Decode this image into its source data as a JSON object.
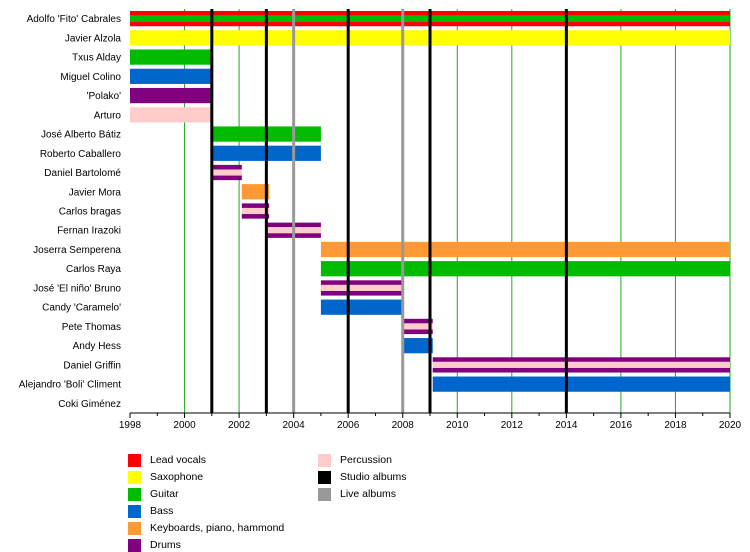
{
  "chart_data": {
    "type": "timeline",
    "x_start": 1998,
    "x_end": 2020,
    "x_ticks": [
      "1998",
      "2000",
      "2002",
      "2004",
      "2006",
      "2008",
      "2010",
      "2012",
      "2014",
      "2016",
      "2018",
      "2020"
    ],
    "members": [
      {
        "name": "Adolfo 'Fito' Cabrales",
        "periods": [
          {
            "from": 1998,
            "to": 2020,
            "roles": [
              "Lead vocals",
              "Guitar"
            ]
          }
        ]
      },
      {
        "name": "Javier Alzola",
        "periods": [
          {
            "from": 1998,
            "to": 2020,
            "roles": [
              "Saxophone"
            ]
          }
        ]
      },
      {
        "name": "Txus Alday",
        "periods": [
          {
            "from": 1998,
            "to": 2001,
            "roles": [
              "Guitar"
            ]
          }
        ]
      },
      {
        "name": "Miguel Colino",
        "periods": [
          {
            "from": 1998,
            "to": 2001,
            "roles": [
              "Bass"
            ]
          }
        ]
      },
      {
        "name": "'Polako'",
        "periods": [
          {
            "from": 1998,
            "to": 2001,
            "roles": [
              "Drums"
            ]
          }
        ]
      },
      {
        "name": "Arturo",
        "periods": [
          {
            "from": 1998,
            "to": 2001,
            "roles": [
              "Percussion"
            ]
          }
        ]
      },
      {
        "name": "José Alberto Bátiz",
        "periods": [
          {
            "from": 2001,
            "to": 2005,
            "roles": [
              "Guitar"
            ]
          }
        ]
      },
      {
        "name": "Roberto Caballero",
        "periods": [
          {
            "from": 2001,
            "to": 2005,
            "roles": [
              "Bass"
            ]
          }
        ]
      },
      {
        "name": "Daniel Bartolomé",
        "periods": [
          {
            "from": 2001,
            "to": 2002.1,
            "roles": [
              "Drums",
              "Percussion"
            ]
          }
        ]
      },
      {
        "name": "Javier Mora",
        "periods": [
          {
            "from": 2002.1,
            "to": 2003.1,
            "roles": [
              "Keyboards, piano, hammond"
            ]
          }
        ]
      },
      {
        "name": "Carlos bragas",
        "periods": [
          {
            "from": 2002.1,
            "to": 2003.1,
            "roles": [
              "Drums",
              "Percussion"
            ]
          }
        ]
      },
      {
        "name": "Fernan Irazoki",
        "periods": [
          {
            "from": 2003,
            "to": 2005,
            "roles": [
              "Drums",
              "Percussion"
            ]
          }
        ]
      },
      {
        "name": "Joserra Semperena",
        "periods": [
          {
            "from": 2005,
            "to": 2020,
            "roles": [
              "Keyboards, piano, hammond"
            ]
          }
        ]
      },
      {
        "name": "Carlos Raya",
        "periods": [
          {
            "from": 2005,
            "to": 2020,
            "roles": [
              "Guitar"
            ]
          }
        ]
      },
      {
        "name": "José 'El niño' Bruno",
        "periods": [
          {
            "from": 2005,
            "to": 2008,
            "roles": [
              "Drums",
              "Percussion"
            ]
          }
        ]
      },
      {
        "name": "Candy 'Caramelo'",
        "periods": [
          {
            "from": 2005,
            "to": 2008,
            "roles": [
              "Bass"
            ]
          }
        ]
      },
      {
        "name": "Pete Thomas",
        "periods": [
          {
            "from": 2008,
            "to": 2009.1,
            "roles": [
              "Drums",
              "Percussion"
            ]
          }
        ]
      },
      {
        "name": "Andy Hess",
        "periods": [
          {
            "from": 2008,
            "to": 2009.1,
            "roles": [
              "Bass"
            ]
          }
        ]
      },
      {
        "name": "Daniel Griffin",
        "periods": [
          {
            "from": 2009.1,
            "to": 2020,
            "roles": [
              "Drums",
              "Percussion"
            ]
          }
        ]
      },
      {
        "name": "Alejandro 'Boli' Climent",
        "periods": [
          {
            "from": 2009.1,
            "to": 2020,
            "roles": [
              "Bass"
            ]
          }
        ]
      },
      {
        "name": "Coki Giménez",
        "periods": []
      }
    ],
    "studio_albums": [
      2001,
      2003,
      2006,
      2009,
      2014
    ],
    "live_albums": [
      2004,
      2008
    ],
    "legend": [
      {
        "label": "Lead vocals",
        "color": "#ff0000"
      },
      {
        "label": "Saxophone",
        "color": "#ffff00"
      },
      {
        "label": "Guitar",
        "color": "#00bb00"
      },
      {
        "label": "Bass",
        "color": "#0066cc"
      },
      {
        "label": "Keyboards, piano, hammond",
        "color": "#ff9933"
      },
      {
        "label": "Drums",
        "color": "#800080"
      },
      {
        "label": "Percussion",
        "color": "#ffcccc"
      },
      {
        "label": "Studio albums",
        "color": "#000000"
      },
      {
        "label": "Live albums",
        "color": "#999999"
      }
    ],
    "grid": true
  }
}
